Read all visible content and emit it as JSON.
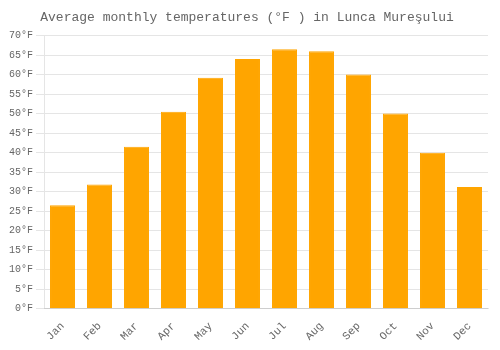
{
  "chart_data": {
    "type": "bar",
    "title": "Average monthly temperatures (°F ) in Lunca Mureşului",
    "categories": [
      "Jan",
      "Feb",
      "Mar",
      "Apr",
      "May",
      "Jun",
      "Jul",
      "Aug",
      "Sep",
      "Oct",
      "Nov",
      "Dec"
    ],
    "values": [
      26.5,
      31.8,
      41.5,
      50.5,
      59.2,
      64.0,
      66.5,
      66.0,
      60.0,
      50.0,
      40.0,
      31.2
    ],
    "color": "#FFA500",
    "ylim": [
      0,
      70
    ],
    "yticks": [
      {
        "value": 0,
        "label": "0°F"
      },
      {
        "value": 5,
        "label": "5°F"
      },
      {
        "value": 10,
        "label": "10°F"
      },
      {
        "value": 15,
        "label": "15°F"
      },
      {
        "value": 20,
        "label": "20°F"
      },
      {
        "value": 25,
        "label": "25°F"
      },
      {
        "value": 30,
        "label": "30°F"
      },
      {
        "value": 35,
        "label": "35°F"
      },
      {
        "value": 40,
        "label": "40°F"
      },
      {
        "value": 45,
        "label": "45°F"
      },
      {
        "value": 50,
        "label": "50°F"
      },
      {
        "value": 55,
        "label": "55°F"
      },
      {
        "value": 60,
        "label": "60°F"
      },
      {
        "value": 65,
        "label": "65°F"
      },
      {
        "value": 70,
        "label": "70°F"
      }
    ],
    "grid": true
  }
}
